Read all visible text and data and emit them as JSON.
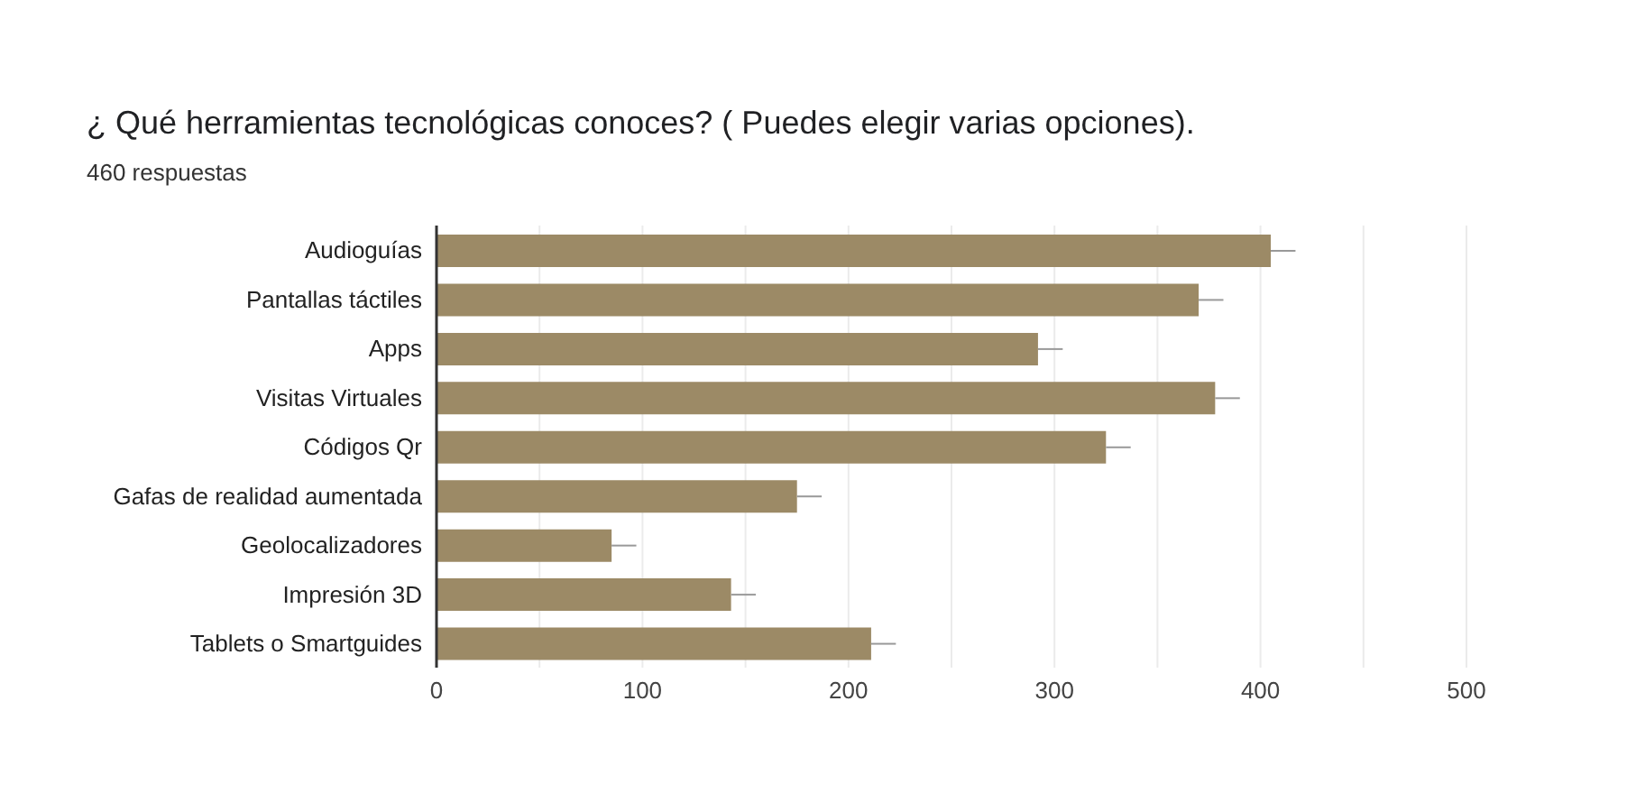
{
  "chart_data": {
    "type": "bar",
    "orientation": "horizontal",
    "title": "¿ Qué herramientas tecnológicas conoces? ( Puedes elegir varias opciones).",
    "subtitle": "460 respuestas",
    "categories": [
      "Audioguías",
      "Pantallas táctiles",
      "Apps",
      "Visitas Virtuales",
      "Códigos Qr",
      "Gafas de realidad aumentada",
      "Geolocalizadores",
      "Impresión 3D",
      "Tablets o Smartguides"
    ],
    "values": [
      405,
      370,
      292,
      378,
      325,
      175,
      85,
      143,
      211
    ],
    "errors": [
      [
        405,
        417
      ],
      [
        370,
        382
      ],
      [
        292,
        304
      ],
      [
        378,
        390
      ],
      [
        325,
        337
      ],
      [
        175,
        187
      ],
      [
        85,
        97
      ],
      [
        143,
        155
      ],
      [
        211,
        223
      ]
    ],
    "color": "#9c8a66",
    "xlim": [
      0,
      500
    ],
    "xticks": [
      0,
      {
        "value": 50,
        "label": null
      },
      100,
      {
        "value": 150,
        "label": null
      },
      200,
      {
        "value": 250,
        "label": null
      },
      300,
      {
        "value": 350,
        "label": null
      },
      400,
      {
        "value": 450,
        "label": null
      },
      500
    ],
    "grid": "x"
  }
}
